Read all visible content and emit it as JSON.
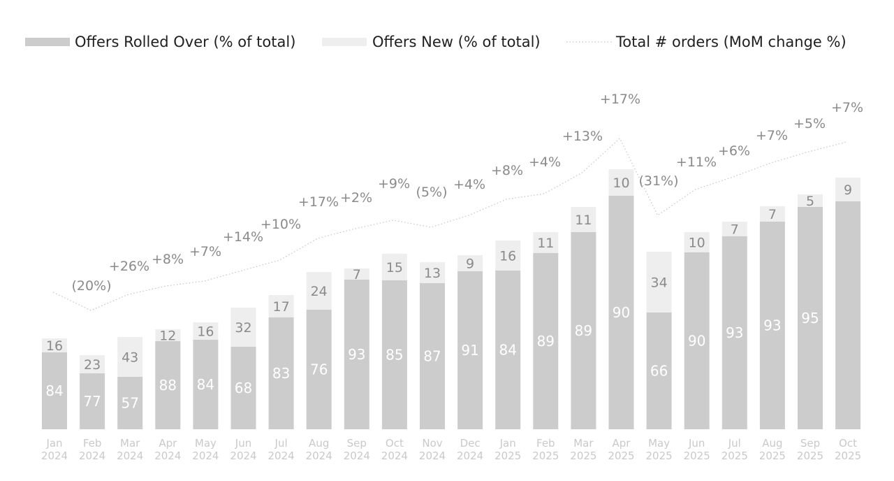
{
  "chart_data": {
    "type": "bar",
    "stacked": true,
    "categories": [
      [
        "Jan",
        "2024"
      ],
      [
        "Feb",
        "2024"
      ],
      [
        "Mar",
        "2024"
      ],
      [
        "Apr",
        "2024"
      ],
      [
        "May",
        "2024"
      ],
      [
        "Jun",
        "2024"
      ],
      [
        "Jul",
        "2024"
      ],
      [
        "Aug",
        "2024"
      ],
      [
        "Sep",
        "2024"
      ],
      [
        "Oct",
        "2024"
      ],
      [
        "Nov",
        "2024"
      ],
      [
        "Dec",
        "2024"
      ],
      [
        "Jan",
        "2025"
      ],
      [
        "Feb",
        "2025"
      ],
      [
        "Mar",
        "2025"
      ],
      [
        "Apr",
        "2025"
      ],
      [
        "May",
        "2025"
      ],
      [
        "Jun",
        "2025"
      ],
      [
        "Jul",
        "2025"
      ],
      [
        "Aug",
        "2025"
      ],
      [
        "Sep",
        "2025"
      ],
      [
        "Oct",
        "2025"
      ]
    ],
    "series": [
      {
        "name": "Offers Rolled Over (% of total)",
        "color": "#cccccc",
        "values": [
          84,
          77,
          57,
          88,
          84,
          68,
          83,
          76,
          93,
          85,
          87,
          91,
          84,
          89,
          89,
          90,
          66,
          90,
          93,
          93,
          95,
          null
        ]
      },
      {
        "name": "Offers New (% of total)",
        "color": "#eeeeee",
        "values": [
          16,
          23,
          43,
          12,
          16,
          32,
          17,
          24,
          7,
          15,
          13,
          9,
          16,
          11,
          11,
          10,
          34,
          10,
          7,
          7,
          5,
          9
        ]
      }
    ],
    "line_series": {
      "name": "Total # orders (MoM change %)",
      "color": "#c4c4c4",
      "style": "dotted",
      "labels": [
        null,
        "(20%)",
        "+26%",
        "+8%",
        "+7%",
        "+14%",
        "+10%",
        "+17%",
        "+2%",
        "+9%",
        "(5%)",
        "+4%",
        "+8%",
        "+4%",
        "+13%",
        "+17%",
        "(31%)",
        "+11%",
        "+6%",
        "+7%",
        "+5%",
        "+7%"
      ]
    },
    "legend": {
      "position": "top",
      "items": [
        "Offers Rolled Over (% of total)",
        "Offers New (% of total)",
        "Total # orders (MoM change %)"
      ]
    },
    "title": "",
    "xlabel": "",
    "ylabel": "",
    "grid": false
  }
}
